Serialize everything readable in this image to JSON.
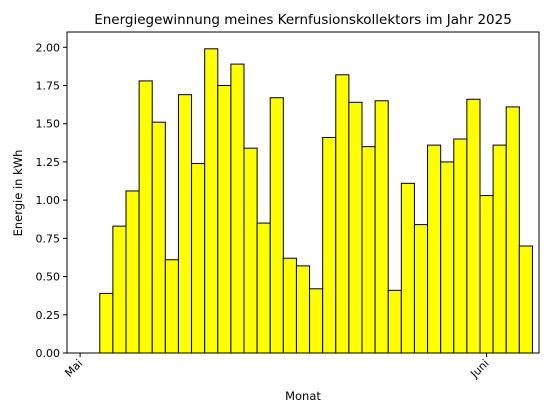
{
  "chart_data": {
    "type": "bar",
    "title": "Energiegewinnung meines Kernfusionskollektors im Jahr 2025",
    "xlabel": "Monat",
    "ylabel": "Energie in kWh",
    "ylim": [
      0,
      2.1
    ],
    "yticks": [
      "0.00",
      "0.25",
      "0.50",
      "0.75",
      "1.00",
      "1.25",
      "1.50",
      "1.75",
      "2.00"
    ],
    "ytick_values": [
      0,
      0.25,
      0.5,
      0.75,
      1.0,
      1.25,
      1.5,
      1.75,
      2.0
    ],
    "xlim": [
      "2025-04-30",
      "2025-06-05"
    ],
    "xticks": [
      {
        "date": "2025-05-01",
        "label": "Mai"
      },
      {
        "date": "2025-06-01",
        "label": "Juni"
      }
    ],
    "bar_color": "#ffff00",
    "bar_edge_color": "#000000",
    "grid": false,
    "days": [
      "2025-05-01",
      "2025-05-02",
      "2025-05-03",
      "2025-05-04",
      "2025-05-05",
      "2025-05-06",
      "2025-05-07",
      "2025-05-08",
      "2025-05-09",
      "2025-05-10",
      "2025-05-11",
      "2025-05-12",
      "2025-05-13",
      "2025-05-14",
      "2025-05-15",
      "2025-05-16",
      "2025-05-17",
      "2025-05-18",
      "2025-05-19",
      "2025-05-20",
      "2025-05-21",
      "2025-05-22",
      "2025-05-23",
      "2025-05-24",
      "2025-05-25",
      "2025-05-26",
      "2025-05-27",
      "2025-05-28",
      "2025-05-29",
      "2025-05-30",
      "2025-05-31",
      "2025-06-01",
      "2025-06-02",
      "2025-06-03",
      "2025-06-04"
    ],
    "values": [
      0.0,
      0.0,
      0.39,
      0.83,
      1.06,
      1.78,
      1.51,
      0.61,
      1.69,
      1.24,
      1.99,
      1.75,
      1.89,
      1.34,
      0.85,
      1.67,
      0.62,
      0.57,
      0.42,
      1.41,
      1.82,
      1.64,
      1.35,
      1.65,
      0.41,
      1.11,
      0.84,
      1.36,
      1.25,
      1.4,
      1.66,
      1.03,
      1.36,
      1.61,
      0.7
    ]
  }
}
